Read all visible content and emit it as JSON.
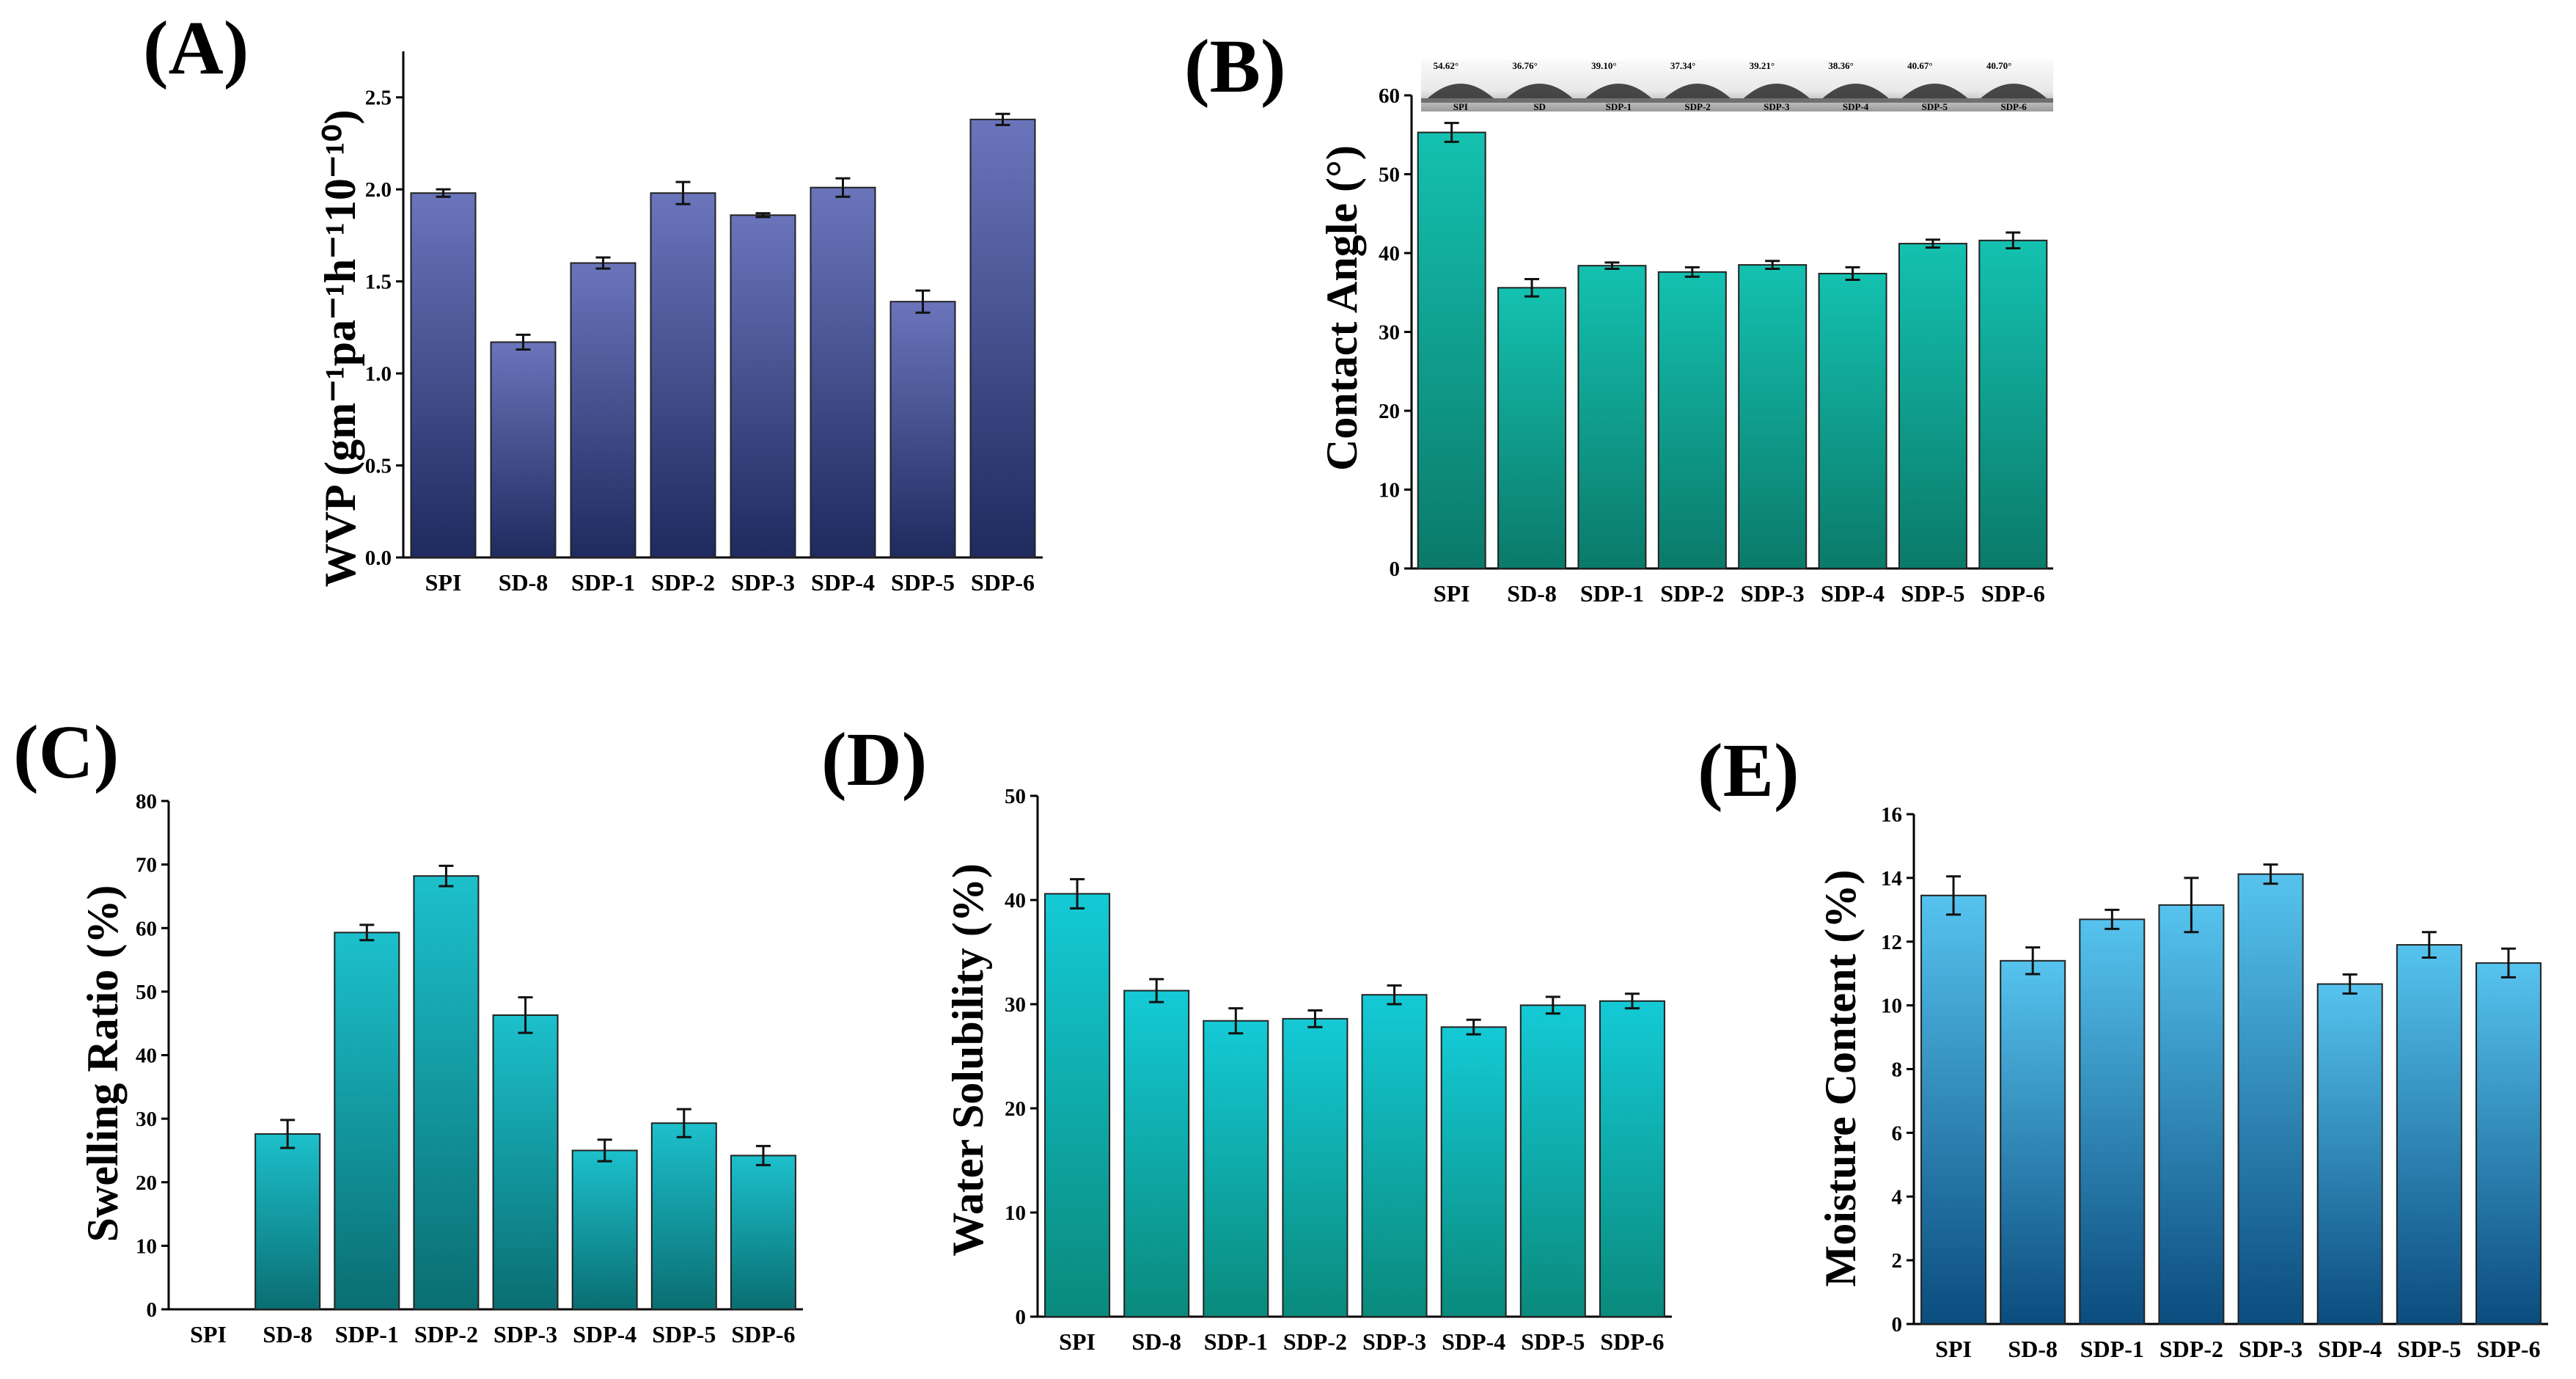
{
  "chart_data": [
    {
      "panel": "(A)",
      "type": "bar",
      "ylabel": "WVP (gm⁻¹pa⁻¹h⁻¹10⁻¹⁰)",
      "ylim": [
        0,
        2.75
      ],
      "yticks": [
        "0.0",
        "0.5",
        "1.0",
        "1.5",
        "2.0",
        "2.5"
      ],
      "categories": [
        "SPI",
        "SD-8",
        "SDP-1",
        "SDP-2",
        "SDP-3",
        "SDP-4",
        "SDP-5",
        "SDP-6"
      ],
      "values": [
        1.98,
        1.17,
        1.6,
        1.98,
        1.86,
        2.01,
        1.39,
        2.38
      ],
      "errors": [
        0.02,
        0.04,
        0.03,
        0.06,
        0.01,
        0.05,
        0.06,
        0.03
      ],
      "colors": [
        "#6a75bc",
        "#1f2a5e"
      ]
    },
    {
      "panel": "(B)",
      "type": "bar",
      "ylabel": "Contact Angle (°)",
      "ylim": [
        0,
        60
      ],
      "yticks": [
        "0",
        "10",
        "20",
        "30",
        "40",
        "50",
        "60"
      ],
      "categories": [
        "SPI",
        "SD-8",
        "SDP-1",
        "SDP-2",
        "SDP-3",
        "SDP-4",
        "SDP-5",
        "SDP-6"
      ],
      "values": [
        55.3,
        35.6,
        38.4,
        37.6,
        38.5,
        37.4,
        41.2,
        41.6
      ],
      "errors": [
        1.2,
        1.1,
        0.4,
        0.6,
        0.5,
        0.8,
        0.5,
        1.0
      ],
      "colors": [
        "#14c1b0",
        "#0b7a6a"
      ],
      "inset": {
        "labels": [
          "SPI",
          "SD",
          "SDP-1",
          "SDP-2",
          "SDP-3",
          "SDP-4",
          "SDP-5",
          "SDP-6"
        ],
        "angles": [
          "54.62°",
          "36.76°",
          "39.10°",
          "37.34°",
          "39.21°",
          "38.36°",
          "40.67°",
          "40.70°"
        ]
      }
    },
    {
      "panel": "(C)",
      "type": "bar",
      "ylabel": "Swelling Ratio (%)",
      "ylim": [
        0,
        80
      ],
      "yticks": [
        "0",
        "10",
        "20",
        "30",
        "40",
        "50",
        "60",
        "70",
        "80"
      ],
      "categories": [
        "SPI",
        "SD-8",
        "SDP-1",
        "SDP-2",
        "SDP-3",
        "SDP-4",
        "SDP-5",
        "SDP-6"
      ],
      "values": [
        0,
        27.6,
        59.3,
        68.2,
        46.3,
        25.0,
        29.3,
        24.2
      ],
      "errors": [
        0,
        2.2,
        1.2,
        1.6,
        2.8,
        1.7,
        2.2,
        1.5
      ],
      "colors": [
        "#1cc0cc",
        "#0a6e72"
      ]
    },
    {
      "panel": "(D)",
      "type": "bar",
      "ylabel": "Water Solubility (%)",
      "ylim": [
        0,
        50
      ],
      "yticks": [
        "0",
        "10",
        "20",
        "30",
        "40",
        "50"
      ],
      "categories": [
        "SPI",
        "SD-8",
        "SDP-1",
        "SDP-2",
        "SDP-3",
        "SDP-4",
        "SDP-5",
        "SDP-6"
      ],
      "values": [
        40.6,
        31.3,
        28.4,
        28.6,
        30.9,
        27.8,
        29.9,
        30.3
      ],
      "errors": [
        1.4,
        1.1,
        1.2,
        0.8,
        0.9,
        0.7,
        0.8,
        0.7
      ],
      "colors": [
        "#14cad6",
        "#0a8a7c"
      ]
    },
    {
      "panel": "(E)",
      "type": "bar",
      "ylabel": "Moisture Content (%)",
      "ylim": [
        0,
        16
      ],
      "yticks": [
        "0",
        "2",
        "4",
        "6",
        "8",
        "10",
        "12",
        "14",
        "16"
      ],
      "categories": [
        "SPI",
        "SD-8",
        "SDP-1",
        "SDP-2",
        "SDP-3",
        "SDP-4",
        "SDP-5",
        "SDP-6"
      ],
      "values": [
        13.45,
        11.4,
        12.7,
        13.15,
        14.12,
        10.67,
        11.9,
        11.33
      ],
      "errors": [
        0.6,
        0.42,
        0.3,
        0.85,
        0.3,
        0.3,
        0.4,
        0.45
      ],
      "colors": [
        "#56c3ee",
        "#0b4c7e"
      ]
    }
  ]
}
